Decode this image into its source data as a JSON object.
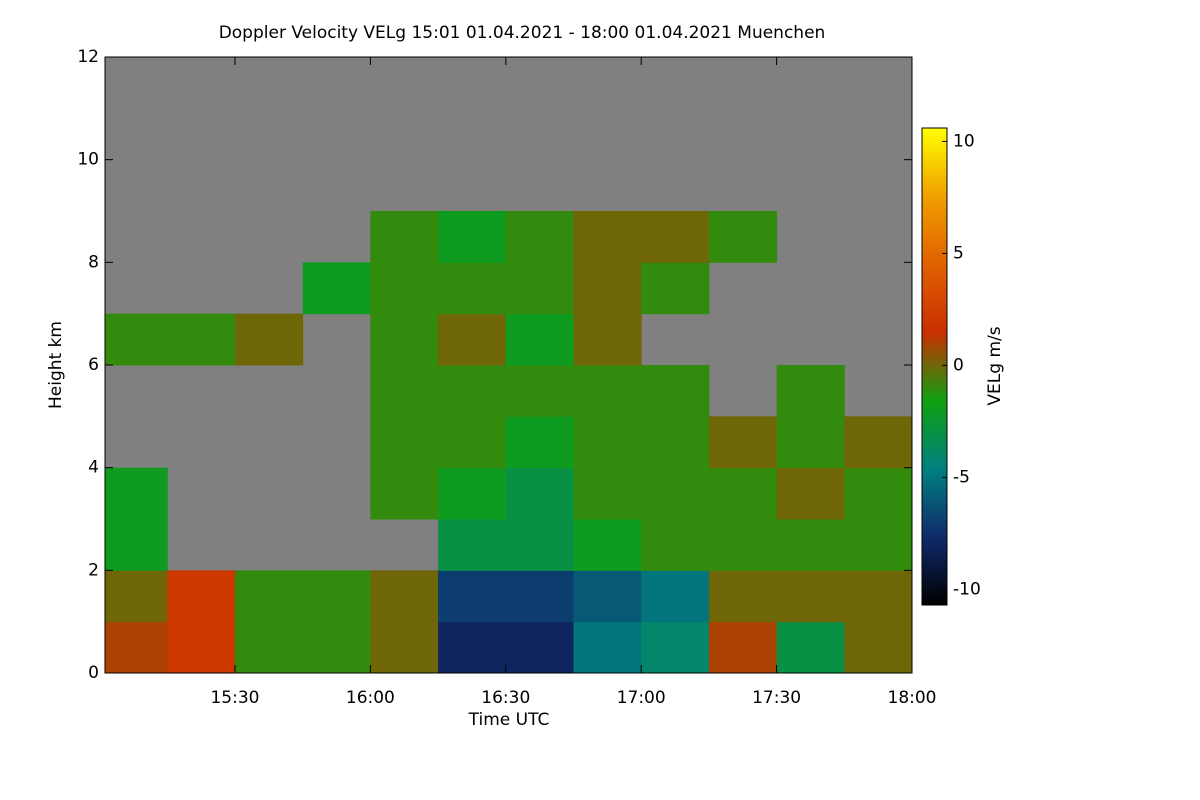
{
  "chart_data": {
    "type": "heatmap",
    "title": "Doppler Velocity VELg   15:01 01.04.2021 - 18:00 01.04.2021 Muenchen",
    "xlabel": "Time UTC",
    "ylabel": "Height km",
    "colorbar_label": "VELg m/s",
    "xbins": [
      15.02,
      15.25,
      15.5,
      15.75,
      16.0,
      16.25,
      16.5,
      16.75,
      17.0,
      17.25,
      17.5,
      17.75,
      18.0
    ],
    "ybins": [
      0,
      1,
      2,
      3,
      4,
      5,
      6,
      7,
      8,
      9,
      10,
      11,
      12
    ],
    "z": [
      [
        1,
        2,
        -1,
        -1,
        0,
        -8,
        -8,
        -5,
        -4,
        1,
        -3,
        0
      ],
      [
        0,
        2,
        -1,
        -1,
        0,
        -7,
        -7,
        -6,
        -5,
        0,
        0,
        0
      ],
      [
        -2,
        null,
        null,
        null,
        null,
        -3,
        -3,
        -2,
        -1,
        -1,
        -1,
        -1
      ],
      [
        -2,
        null,
        null,
        null,
        -1,
        -2,
        -3,
        -1,
        -1,
        -1,
        0,
        -1
      ],
      [
        null,
        null,
        null,
        null,
        -1,
        -1,
        -2,
        -1,
        -1,
        0,
        -1,
        0
      ],
      [
        null,
        null,
        null,
        null,
        -1,
        -1,
        -1,
        -1,
        -1,
        null,
        -1,
        null
      ],
      [
        -1,
        -1,
        0,
        null,
        -1,
        0,
        -2,
        0,
        null,
        null,
        null,
        null
      ],
      [
        null,
        null,
        null,
        -2,
        -1,
        -1,
        -1,
        0,
        -1,
        null,
        null,
        null
      ],
      [
        null,
        null,
        null,
        null,
        -1,
        -2,
        -1,
        0,
        0,
        -1,
        null,
        null
      ],
      [
        null,
        null,
        null,
        null,
        null,
        null,
        null,
        null,
        null,
        null,
        null,
        null
      ],
      [
        null,
        null,
        null,
        null,
        null,
        null,
        null,
        null,
        null,
        null,
        null,
        null
      ],
      [
        null,
        null,
        null,
        null,
        null,
        null,
        null,
        null,
        null,
        null,
        null,
        null
      ]
    ],
    "xlim": [
      15.02,
      18.0
    ],
    "xticks": [
      {
        "value": 15.5,
        "label": "15:30"
      },
      {
        "value": 16.0,
        "label": "16:00"
      },
      {
        "value": 16.5,
        "label": "16:30"
      },
      {
        "value": 17.0,
        "label": "17:00"
      },
      {
        "value": 17.5,
        "label": "17:30"
      },
      {
        "value": 18.0,
        "label": "18:00"
      }
    ],
    "ylim": [
      0,
      12
    ],
    "yticks": [
      0,
      2,
      4,
      6,
      8,
      10,
      12
    ],
    "clim": [
      -10.7,
      10.6
    ],
    "cticks": [
      -10,
      -5,
      0,
      5,
      10
    ],
    "colors": [
      "#000000",
      "#102a6a",
      "#008080",
      "#10a010",
      "#c83000",
      "#e06000",
      "#f0a000",
      "#ffff00"
    ],
    "nodata_color": "#808080"
  }
}
